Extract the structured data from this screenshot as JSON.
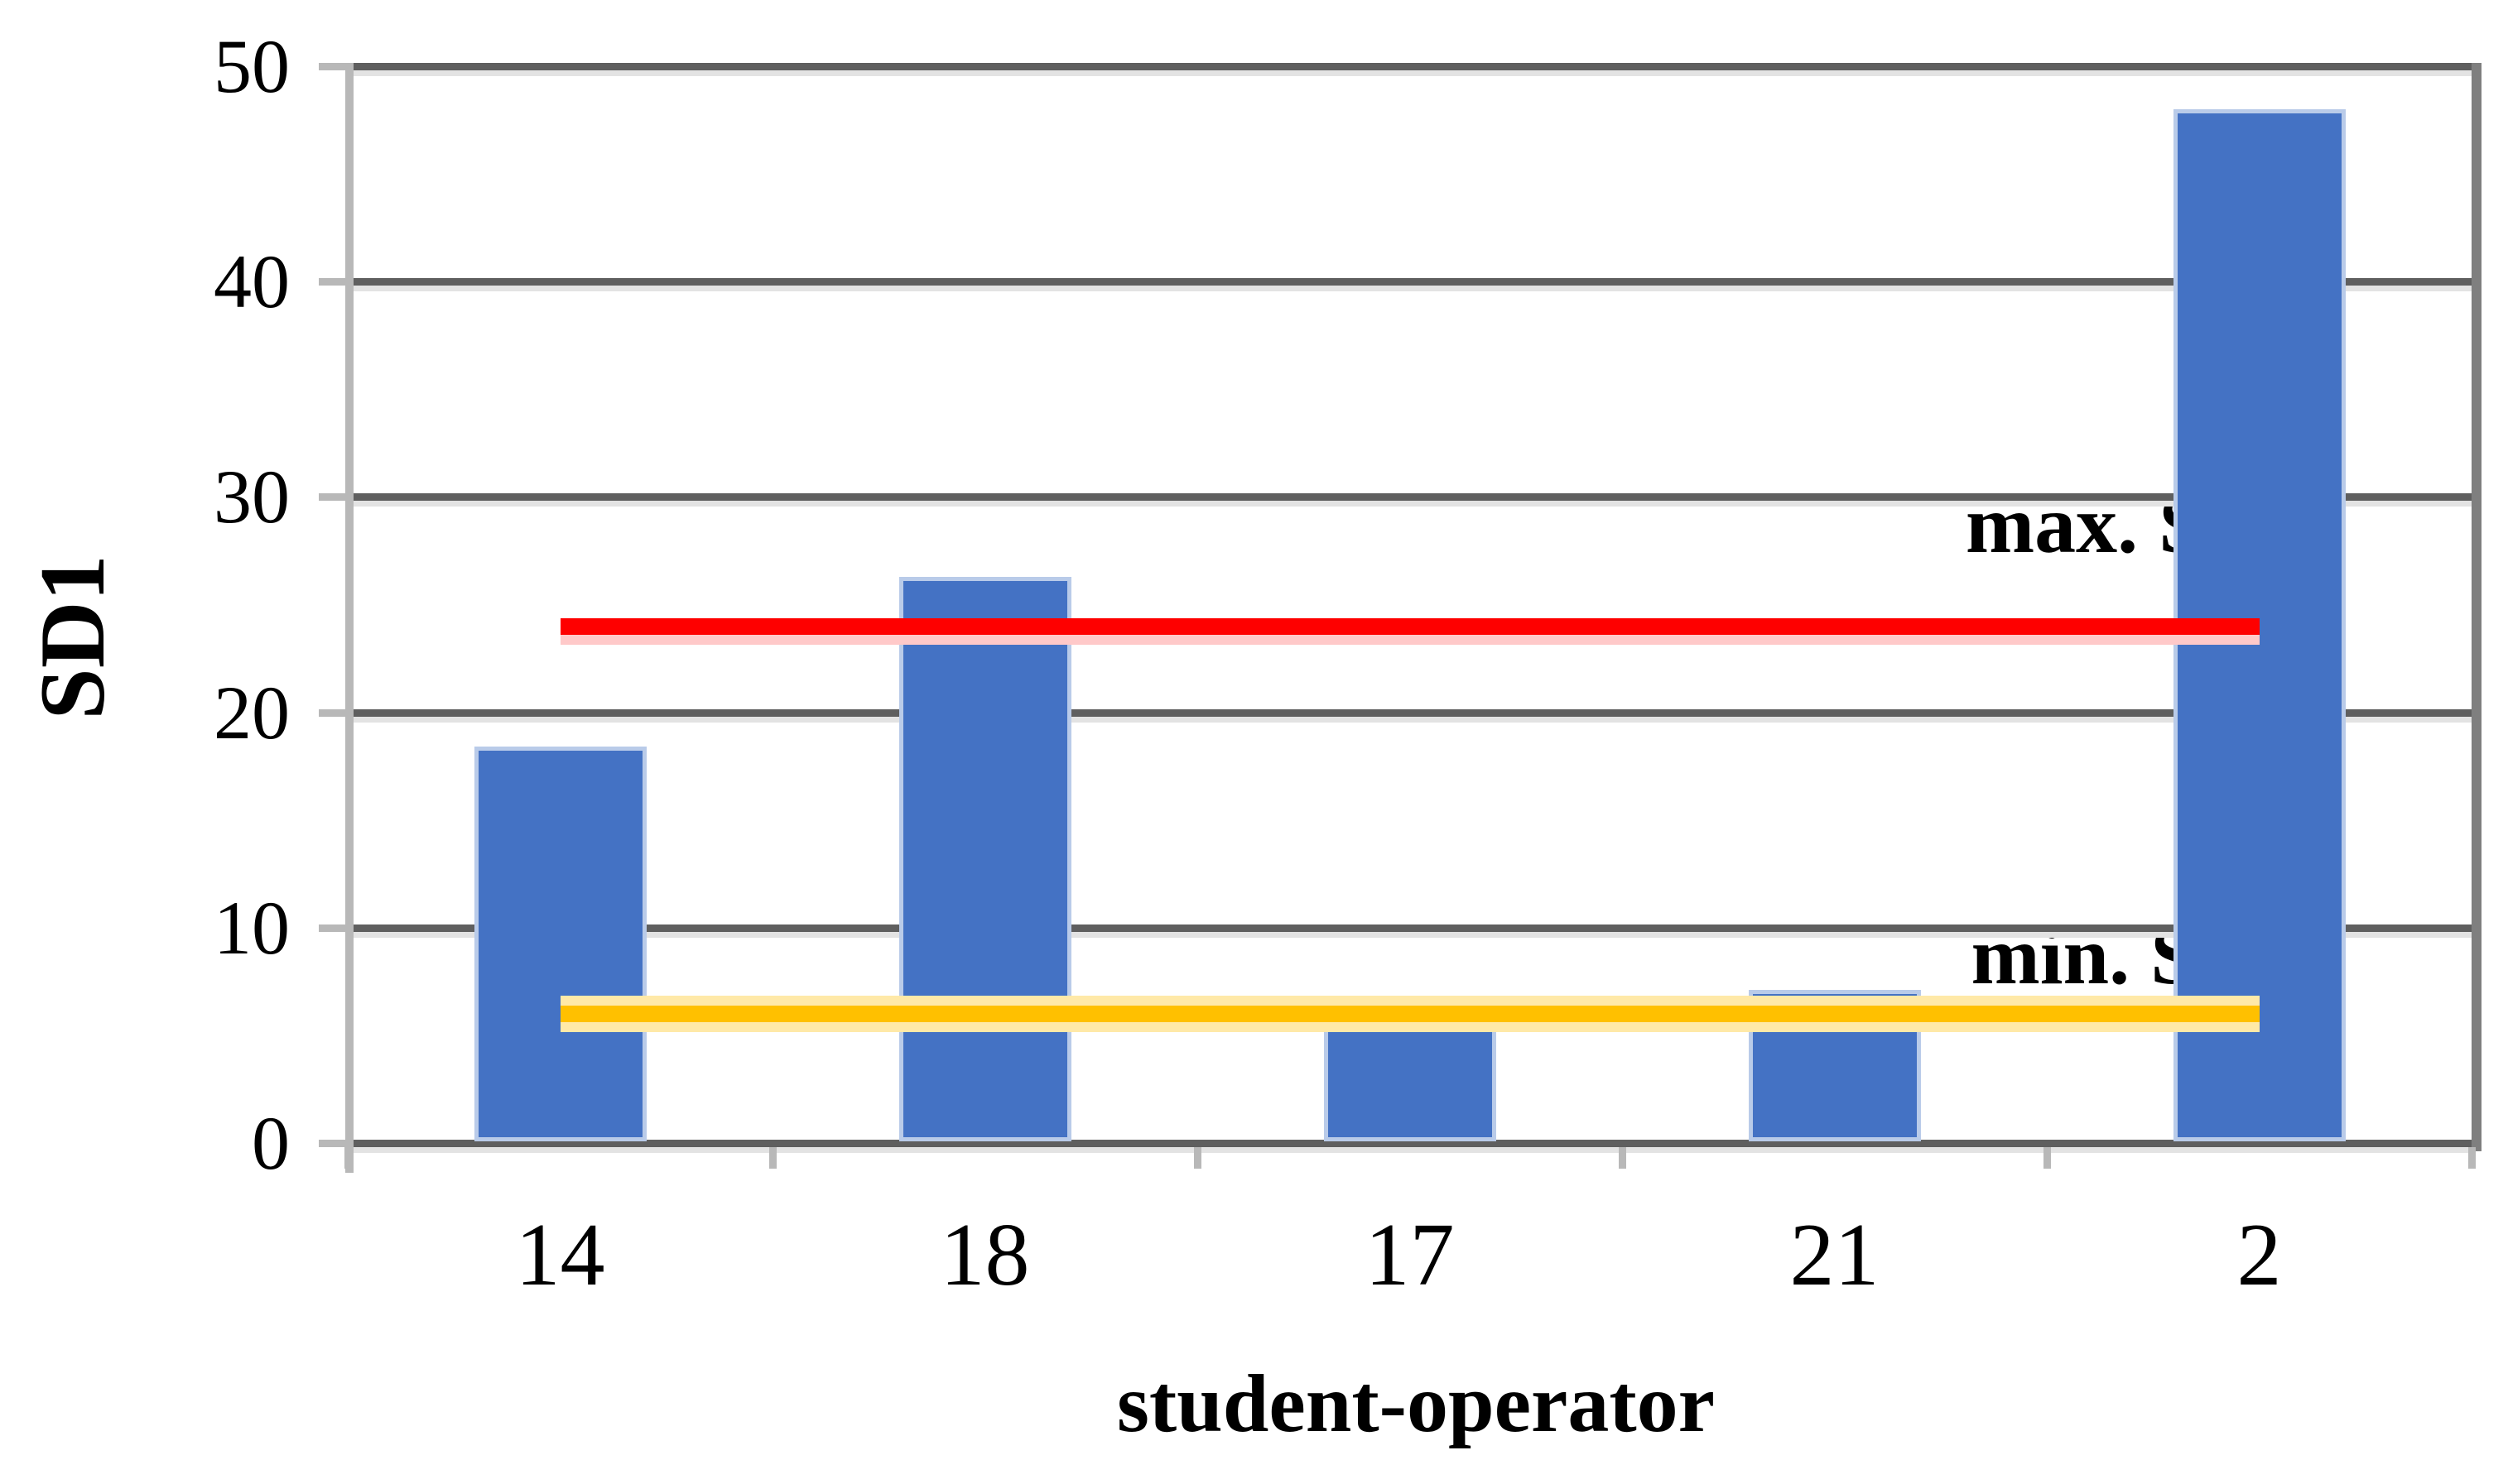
{
  "chart_data": {
    "type": "bar",
    "title": "",
    "xlabel": "student-operator",
    "ylabel": "SD1",
    "categories": [
      "14",
      "18",
      "17",
      "21",
      "2"
    ],
    "values": [
      18.4,
      26.3,
      5.5,
      7.1,
      48.0
    ],
    "bar_color": "#4472C4",
    "ylim": [
      0,
      50
    ],
    "yticks": [
      0,
      10,
      20,
      30,
      40,
      50
    ],
    "grid": "horizontal",
    "legend": "none",
    "reference_lines": [
      {
        "id": "max",
        "label": "max. SD1",
        "value": 24,
        "color": "#fe0000"
      },
      {
        "id": "min",
        "label": "min. SD1",
        "value": 6,
        "color": "#ffc000"
      }
    ]
  }
}
